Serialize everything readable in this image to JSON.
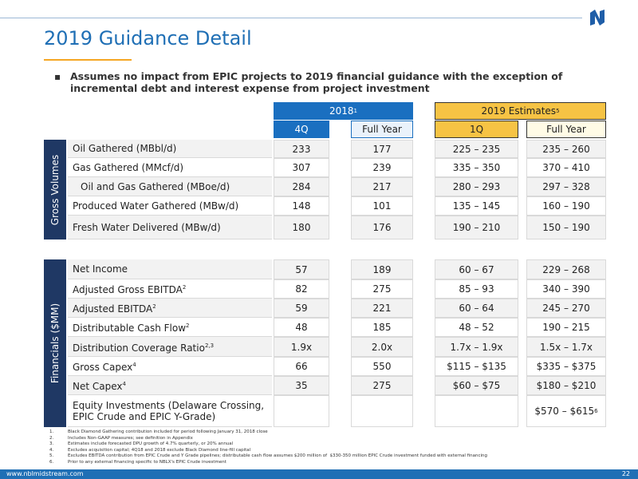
{
  "header": {
    "title": "2019 Guidance Detail"
  },
  "bullet": "Assumes no impact from EPIC projects to 2019 financial guidance with the exception of incremental debt and interest expense from project investment",
  "table": {
    "groups": [
      {
        "label": "2018",
        "note": "1"
      },
      {
        "label": "2019 Estimates",
        "note": "5"
      }
    ],
    "columns": [
      "4Q",
      "Full Year",
      "1Q",
      "Full Year"
    ],
    "sections": [
      {
        "name": "Gross Volumes",
        "rows": [
          {
            "label": "Oil Gathered (MBbl/d)",
            "values": [
              "233",
              "177",
              "225 – 235",
              "235 – 260"
            ]
          },
          {
            "label": "Gas Gathered (MMcf/d)",
            "values": [
              "307",
              "239",
              "335 – 350",
              "370 – 410"
            ]
          },
          {
            "label": "Oil and Gas Gathered (MBoe/d)",
            "values": [
              "284",
              "217",
              "280 – 293",
              "297 – 328"
            ]
          },
          {
            "label": "Produced Water Gathered (MBw/d)",
            "values": [
              "148",
              "101",
              "135 – 145",
              "160 – 190"
            ]
          },
          {
            "label": "Fresh Water Delivered (MBw/d)",
            "values": [
              "180",
              "176",
              "190 – 210",
              "150 – 190"
            ]
          }
        ]
      },
      {
        "name": "Financials ($MM)",
        "rows": [
          {
            "label": "Net Income",
            "values": [
              "57",
              "189",
              "60 – 67",
              "229 – 268"
            ]
          },
          {
            "label": "Adjusted Gross EBITDA",
            "note": "2",
            "values": [
              "82",
              "275",
              "85 – 93",
              "340 – 390"
            ]
          },
          {
            "label": "Adjusted EBITDA",
            "note": "2",
            "values": [
              "59",
              "221",
              "60 – 64",
              "245 – 270"
            ]
          },
          {
            "label": "Distributable Cash Flow",
            "note": "2",
            "values": [
              "48",
              "185",
              "48 – 52",
              "190 – 215"
            ]
          },
          {
            "label": "Distribution Coverage Ratio",
            "note": "2,3",
            "values": [
              "1.9x",
              "2.0x",
              "1.7x – 1.9x",
              "1.5x – 1.7x"
            ]
          },
          {
            "label": "Gross Capex",
            "note": "4",
            "values": [
              "66",
              "550",
              "$115 – $135",
              "$335 – $375"
            ]
          },
          {
            "label": "Net Capex",
            "note": "4",
            "values": [
              "35",
              "275",
              "$60 – $75",
              "$180 – $210"
            ]
          },
          {
            "label": "Equity Investments (Delaware Crossing, EPIC Crude and EPIC Y-Grade)",
            "values": [
              null,
              null,
              null,
              "$570 – $615"
            ],
            "value_note": "6"
          }
        ]
      }
    ]
  },
  "footnotes": [
    {
      "marker": "1.",
      "text": "Black Diamond Gathering contribution included for period following January 31, 2018 close"
    },
    {
      "marker": "2.",
      "text": "Includes Non-GAAP measures; see definition in Appendix"
    },
    {
      "marker": "3.",
      "text": "Estimates include forecasted DPU growth of 4.7% quarterly, or 20% annual"
    },
    {
      "marker": "4.",
      "text": "Excludes acquisition capital; 4Q18 and 2018 exclude Black Diamond line-fill capital"
    },
    {
      "marker": "5.",
      "text": "Excludes EBITDA contribution from EPIC Crude and Y Grade pipelines; distributable cash flow assumes $200 million of  $330-350 million EPIC Crude investment funded with external financing"
    },
    {
      "marker": "6.",
      "text": "Prior to any external financing specific to NBLX's EPIC Crude investment"
    }
  ],
  "footer": {
    "url": "www.nblmidstream.com",
    "page": "22"
  }
}
